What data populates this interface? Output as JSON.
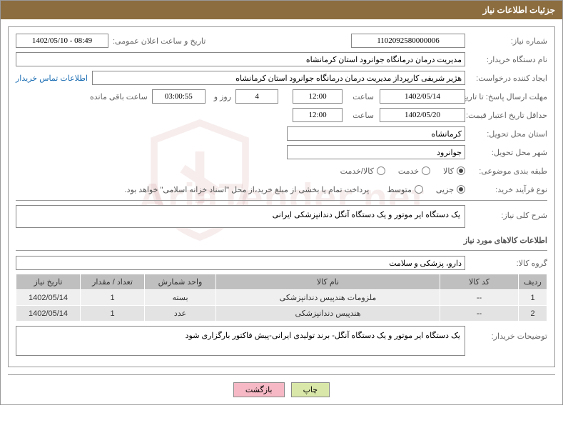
{
  "header": {
    "title": "جزئیات اطلاعات نیاز"
  },
  "form": {
    "need_no_lbl": "شماره نیاز:",
    "need_no": "1102092580000006",
    "announce_lbl": "تاریخ و ساعت اعلان عمومی:",
    "announce_val": "1402/05/10 - 08:49",
    "buyer_org_lbl": "نام دستگاه خریدار:",
    "buyer_org": "مدیریت درمان درمانگاه جوانرود استان کرمانشاه",
    "requester_lbl": "ایجاد کننده درخواست:",
    "requester": "هژیر شریفی کارپرداز مدیریت درمان درمانگاه جوانرود استان کرمانشاه",
    "contact_link": "اطلاعات تماس خریدار",
    "deadline_lbl": "مهلت ارسال پاسخ: تا تاریخ:",
    "deadline_date": "1402/05/14",
    "time_lbl": "ساعت",
    "deadline_time": "12:00",
    "days_val": "4",
    "days_lbl": "روز و",
    "countdown": "03:00:55",
    "remain_lbl": "ساعت باقی مانده",
    "validity_lbl": "حداقل تاریخ اعتبار قیمت: تا تاریخ:",
    "validity_date": "1402/05/20",
    "validity_time": "12:00",
    "province_lbl": "استان محل تحویل:",
    "province": "کرمانشاه",
    "city_lbl": "شهر محل تحویل:",
    "city": "جوانرود",
    "category_lbl": "طبقه بندی موضوعی:",
    "purchase_type_lbl": "نوع فرآیند خرید:",
    "purchase_note": "پرداخت تمام یا بخشی از مبلغ خرید،از محل \"اسناد خزانه اسلامی\" خواهد بود."
  },
  "radios": {
    "cat": {
      "o1": "کالا",
      "o2": "خدمت",
      "o3": "کالا/خدمت"
    },
    "ptype": {
      "o1": "جزیی",
      "o2": "متوسط"
    }
  },
  "sections": {
    "need_desc_lbl": "شرح کلی نیاز:",
    "need_desc": "یک دستگاه ایر موتور و یک دستگاه آنگل دندانپزشکی ایرانی",
    "goods_title": "اطلاعات کالاهای مورد نیاز",
    "group_lbl": "گروه کالا:",
    "group_val": "دارو، پزشکی و سلامت",
    "buyer_notes_lbl": "توضیحات خریدار:",
    "buyer_notes": "یک دستگاه ایر موتور و یک دستگاه آنگل- برند تولیدی ایرانی-پیش فاکتور بارگزاری شود"
  },
  "table": {
    "h_row": "ردیف",
    "h_code": "کد کالا",
    "h_name": "نام کالا",
    "h_unit": "واحد شمارش",
    "h_qty": "تعداد / مقدار",
    "h_date": "تاریخ نیاز",
    "rows": [
      {
        "idx": "1",
        "code": "--",
        "name": "ملزومات هندپیس دندانپزشکی",
        "unit": "بسته",
        "qty": "1",
        "date": "1402/05/14"
      },
      {
        "idx": "2",
        "code": "--",
        "name": "هندپیس دندانپزشکی",
        "unit": "عدد",
        "qty": "1",
        "date": "1402/05/14"
      }
    ]
  },
  "buttons": {
    "back": "بازگشت",
    "print": "چاپ"
  },
  "watermark": "AriaTender.net"
}
